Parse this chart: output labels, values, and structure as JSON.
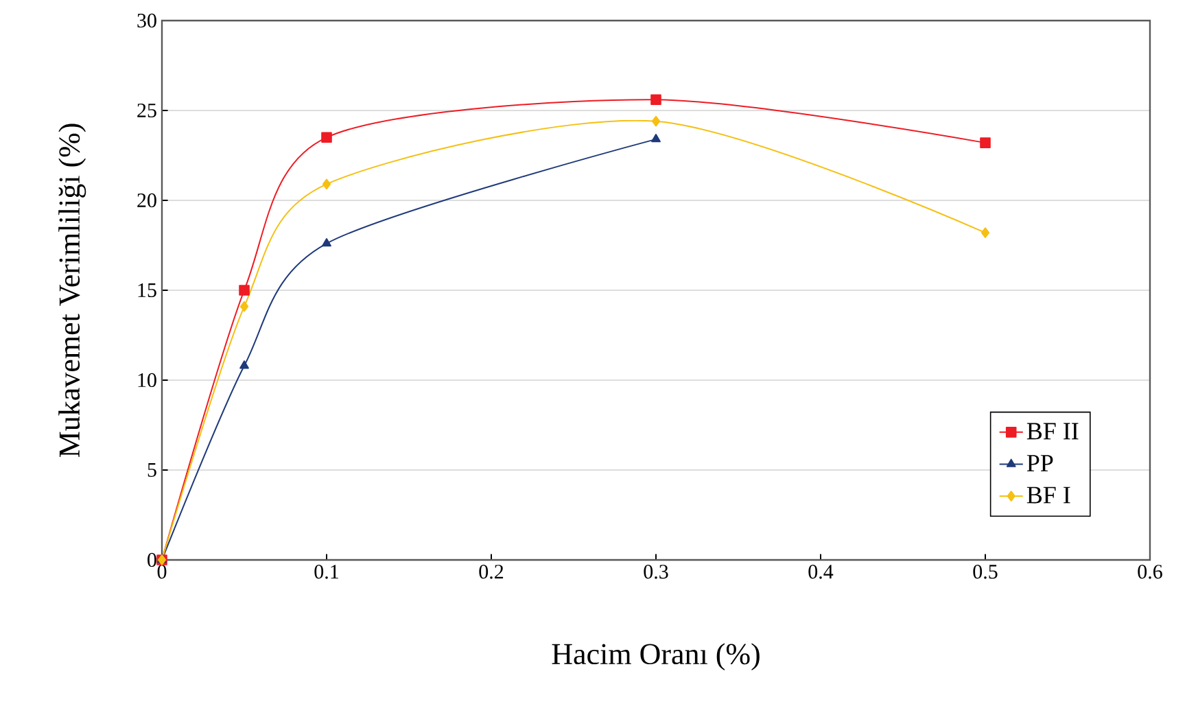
{
  "chart_data": {
    "type": "line",
    "xlabel": "Hacim Oranı (%)",
    "ylabel": "Mukavemet Verimliliği (%)",
    "xlim": [
      0,
      0.6
    ],
    "ylim": [
      0,
      30
    ],
    "xticks": [
      0,
      0.1,
      0.2,
      0.3,
      0.4,
      0.5,
      0.6
    ],
    "yticks": [
      0,
      5,
      10,
      15,
      20,
      25,
      30
    ],
    "grid": "y",
    "legend": "right",
    "line_style": "solid",
    "series": [
      {
        "name": "BF II",
        "color": "#ee1c24",
        "marker": "square",
        "x": [
          0,
          0.05,
          0.1,
          0.3,
          0.5
        ],
        "values": [
          0,
          15,
          23.5,
          25.6,
          23.2
        ]
      },
      {
        "name": "PP",
        "color": "#1f3a7a",
        "marker": "triangle",
        "x": [
          0,
          0.05,
          0.1,
          0.3
        ],
        "values": [
          0,
          10.8,
          17.6,
          23.4
        ]
      },
      {
        "name": "BF I",
        "color": "#f5c012",
        "marker": "diamond",
        "x": [
          0,
          0.05,
          0.1,
          0.3,
          0.5
        ],
        "values": [
          0,
          14.1,
          20.9,
          24.4,
          18.2
        ]
      }
    ]
  }
}
